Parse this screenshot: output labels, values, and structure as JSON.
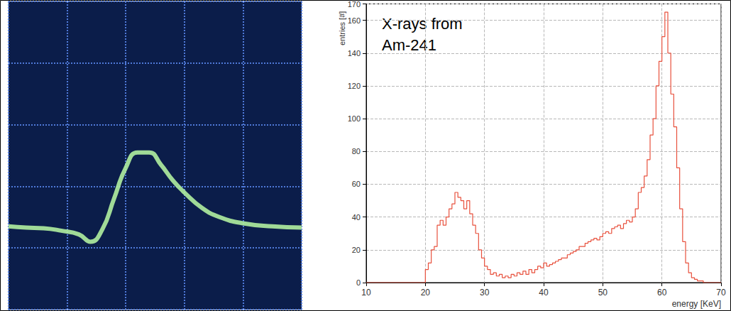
{
  "chart_data": [
    {
      "type": "line",
      "x": [
        0,
        0.3,
        0.6,
        0.9,
        1.2,
        1.4,
        1.6,
        1.8,
        2.0,
        2.2,
        2.4,
        2.6,
        2.8,
        3.0,
        3.3,
        3.6,
        4.0,
        4.5,
        5.0
      ],
      "values": [
        1.35,
        1.33,
        1.32,
        1.28,
        1.22,
        1.1,
        1.3,
        1.8,
        2.3,
        2.55,
        2.55,
        2.35,
        2.1,
        1.9,
        1.65,
        1.5,
        1.4,
        1.35,
        1.33
      ],
      "color": "#b0f0a0",
      "xlim": [
        0,
        5
      ],
      "xticks": [
        0,
        1,
        2,
        3,
        4,
        5
      ],
      "ylim": [
        0,
        5
      ],
      "yticks": [
        0,
        1,
        2,
        3,
        4,
        5
      ],
      "grid": true,
      "tick_labels": false
    },
    {
      "type": "histogram",
      "annotation": [
        "X-rays from",
        "Am-241"
      ],
      "xlabel": "energy [KeV]",
      "ylabel": "entries [#]",
      "bins": [
        10,
        10.5,
        11,
        11.5,
        12,
        12.5,
        13,
        13.5,
        14,
        14.5,
        15,
        15.5,
        16,
        16.5,
        17,
        17.5,
        18,
        18.5,
        19,
        19.5,
        20,
        20.5,
        21,
        21.5,
        22,
        22.5,
        23,
        23.5,
        24,
        24.5,
        25,
        25.5,
        26,
        26.5,
        27,
        27.5,
        28,
        28.5,
        29,
        29.5,
        30,
        30.5,
        31,
        31.5,
        32,
        32.5,
        33,
        33.5,
        34,
        34.5,
        35,
        35.5,
        36,
        36.5,
        37,
        37.5,
        38,
        38.5,
        39,
        39.5,
        40,
        40.5,
        41,
        41.5,
        42,
        42.5,
        43,
        43.5,
        44,
        44.5,
        45,
        45.5,
        46,
        46.5,
        47,
        47.5,
        48,
        48.5,
        49,
        49.5,
        50,
        50.5,
        51,
        51.5,
        52,
        52.5,
        53,
        53.5,
        54,
        54.5,
        55,
        55.5,
        56,
        56.5,
        57,
        57.5,
        58,
        58.5,
        59,
        59.5,
        60,
        60.5,
        61,
        61.5,
        62,
        62.5,
        63,
        63.5,
        64,
        64.5,
        65,
        65.5,
        66,
        66.5,
        67,
        67.5,
        68,
        68.5,
        69,
        69.5,
        70
      ],
      "values": [
        0,
        0,
        0,
        0,
        0,
        0,
        0,
        0,
        0,
        0,
        0,
        0,
        0,
        0,
        0,
        0,
        0,
        0,
        0,
        0,
        8,
        12,
        20,
        22,
        35,
        38,
        35,
        40,
        45,
        48,
        55,
        52,
        50,
        45,
        50,
        42,
        35,
        30,
        20,
        15,
        10,
        8,
        5,
        6,
        4,
        5,
        3,
        4,
        3,
        5,
        4,
        6,
        5,
        7,
        5,
        8,
        6,
        8,
        10,
        9,
        12,
        10,
        11,
        12,
        13,
        14,
        15,
        15,
        17,
        18,
        19,
        20,
        22,
        22,
        24,
        25,
        26,
        27,
        26,
        28,
        30,
        31,
        30,
        33,
        34,
        35,
        33,
        36,
        38,
        37,
        40,
        45,
        55,
        58,
        65,
        75,
        90,
        100,
        120,
        135,
        150,
        165,
        140,
        115,
        95,
        70,
        45,
        25,
        12,
        6,
        3,
        2,
        1,
        1,
        0,
        0,
        0,
        0,
        0,
        0
      ],
      "color": "#e8503c",
      "xlim": [
        10,
        70
      ],
      "xticks": [
        10,
        20,
        30,
        40,
        50,
        60,
        70
      ],
      "ylim": [
        0,
        170
      ],
      "yticks": [
        0,
        20,
        40,
        60,
        80,
        100,
        120,
        140,
        160
      ],
      "grid": true
    }
  ]
}
